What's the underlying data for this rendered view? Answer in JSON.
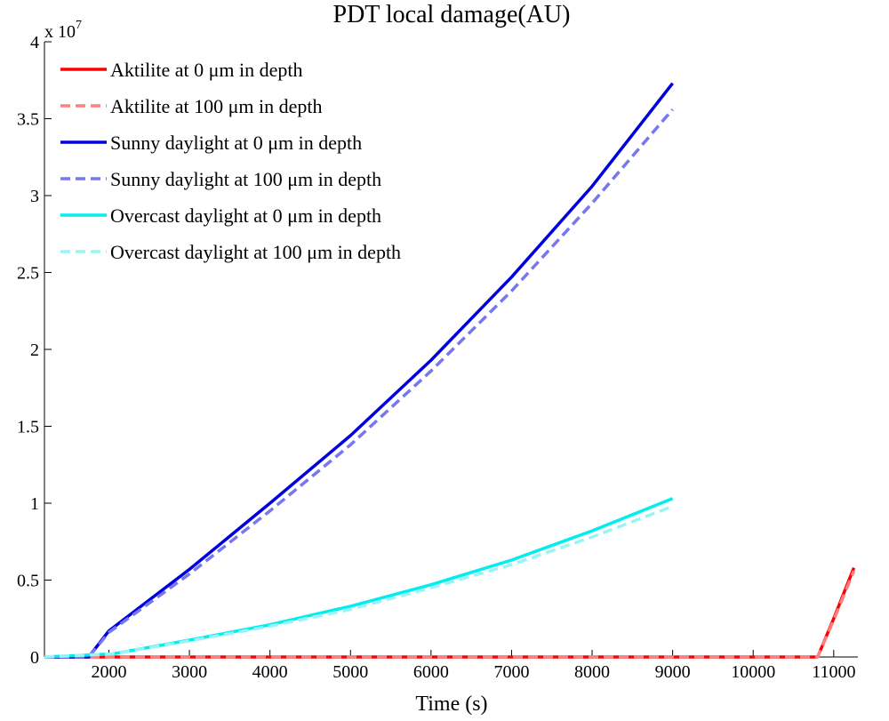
{
  "chart_data": {
    "type": "line",
    "title": "PDT local damage(AU)",
    "xlabel": "Time (s)",
    "ylabel": "",
    "y_exponent_label": "x 10",
    "y_exponent_power": "7",
    "y_scale_factor": 10000000,
    "xlim": [
      1200,
      11300
    ],
    "ylim": [
      0,
      4
    ],
    "xticks": [
      2000,
      3000,
      4000,
      5000,
      6000,
      7000,
      8000,
      9000,
      10000,
      11000
    ],
    "yticks": [
      0,
      0.5,
      1,
      1.5,
      2,
      2.5,
      3,
      3.5,
      4
    ],
    "grid": false,
    "legend_position": "top-left",
    "series": [
      {
        "name": "Aktilite at 0 μm in depth",
        "color": "#ff0000",
        "dashed": false,
        "x": [
          1200,
          10800,
          11000,
          11250
        ],
        "y": [
          0,
          0,
          0.25,
          0.58
        ]
      },
      {
        "name": "Aktilite at 100 μm in depth",
        "color": "#ff8080",
        "dashed": true,
        "x": [
          1200,
          10800,
          11000,
          11250
        ],
        "y": [
          0,
          0,
          0.24,
          0.56
        ]
      },
      {
        "name": "Sunny daylight at 0 μm in depth",
        "color": "#0000dd",
        "dashed": false,
        "x": [
          1200,
          1750,
          2000,
          3000,
          4000,
          5000,
          6000,
          7000,
          8000,
          9000
        ],
        "y": [
          0,
          0,
          0.17,
          0.57,
          1.0,
          1.44,
          1.93,
          2.47,
          3.06,
          3.73
        ]
      },
      {
        "name": "Sunny daylight at 100 μm in depth",
        "color": "#7777ee",
        "dashed": true,
        "x": [
          1200,
          1750,
          2000,
          3000,
          4000,
          5000,
          6000,
          7000,
          8000,
          9000
        ],
        "y": [
          0,
          0,
          0.16,
          0.54,
          0.95,
          1.38,
          1.86,
          2.38,
          2.95,
          3.56
        ]
      },
      {
        "name": "Overcast daylight at 0 μm in depth",
        "color": "#00eeee",
        "dashed": false,
        "x": [
          1200,
          2050,
          3000,
          4000,
          5000,
          6000,
          7000,
          8000,
          9000
        ],
        "y": [
          0,
          0.02,
          0.11,
          0.21,
          0.33,
          0.47,
          0.63,
          0.82,
          1.03
        ]
      },
      {
        "name": "Overcast daylight at 100 μm in depth",
        "color": "#99f5f5",
        "dashed": true,
        "x": [
          1200,
          2050,
          3000,
          4000,
          5000,
          6000,
          7000,
          8000,
          9000
        ],
        "y": [
          0,
          0.02,
          0.105,
          0.2,
          0.31,
          0.45,
          0.6,
          0.78,
          0.98
        ]
      }
    ]
  }
}
